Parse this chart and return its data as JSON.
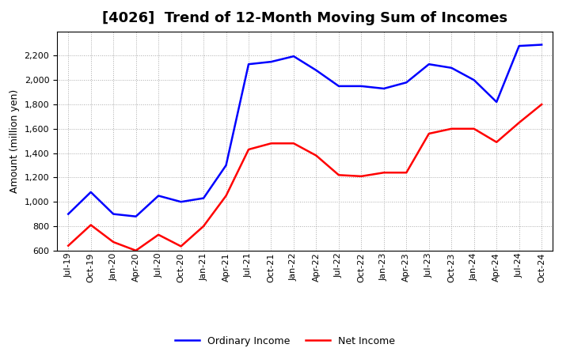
{
  "title": "[4026]  Trend of 12-Month Moving Sum of Incomes",
  "ylabel": "Amount (million yen)",
  "ylim": [
    600,
    2400
  ],
  "yticks": [
    600,
    800,
    1000,
    1200,
    1400,
    1600,
    1800,
    2000,
    2200
  ],
  "x_labels": [
    "Jul-19",
    "Oct-19",
    "Jan-20",
    "Apr-20",
    "Jul-20",
    "Oct-20",
    "Jan-21",
    "Apr-21",
    "Jul-21",
    "Oct-21",
    "Jan-22",
    "Apr-22",
    "Jul-22",
    "Oct-22",
    "Jan-23",
    "Apr-23",
    "Jul-23",
    "Oct-23",
    "Jan-24",
    "Apr-24",
    "Jul-24",
    "Oct-24"
  ],
  "ordinary_income": [
    900,
    1080,
    900,
    880,
    1050,
    1000,
    1030,
    1300,
    2130,
    2150,
    2195,
    2080,
    1950,
    1950,
    1930,
    1980,
    2130,
    2100,
    2000,
    1820,
    2280,
    2290
  ],
  "net_income": [
    640,
    810,
    670,
    600,
    730,
    635,
    800,
    1050,
    1430,
    1480,
    1480,
    1380,
    1220,
    1210,
    1240,
    1240,
    1560,
    1600,
    1600,
    1490,
    1650,
    1800
  ],
  "ordinary_color": "#0000FF",
  "net_color": "#FF0000",
  "background_color": "#FFFFFF",
  "grid_color": "#AAAAAA",
  "title_fontsize": 13,
  "label_fontsize": 9,
  "tick_fontsize": 8,
  "legend_fontsize": 9,
  "line_width": 1.8
}
